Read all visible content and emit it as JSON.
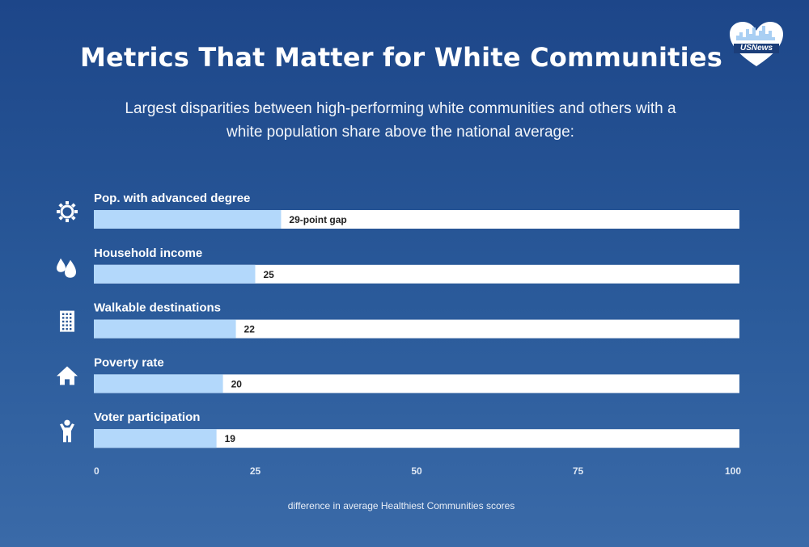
{
  "header": {
    "title": "Metrics That Matter for White Communities",
    "subtitle": "Largest disparities between high-performing white communities and others with a white population share above the national average:"
  },
  "logo": {
    "text": "USNews",
    "icon": "heart-skyline-icon"
  },
  "colors": {
    "bar_fill": "#b3d8fb",
    "bar_track": "#ffffff",
    "background": "#22508f"
  },
  "chart_data": {
    "type": "bar",
    "orientation": "horizontal",
    "categories": [
      "Pop. with advanced degree",
      "Household income",
      "Walkable destinations",
      "Poverty rate",
      "Voter participation"
    ],
    "values": [
      29,
      25,
      22,
      20,
      19
    ],
    "data_labels": [
      "29-point gap",
      "25",
      "22",
      "20",
      "19"
    ],
    "icons": [
      "sun-icon",
      "drops-icon",
      "building-icon",
      "house-icon",
      "person-icon"
    ],
    "xlim": [
      0,
      100
    ],
    "xticks": [
      0,
      25,
      50,
      75,
      100
    ],
    "xlabel": "difference in average Healthiest Communities scores",
    "grid": false
  }
}
